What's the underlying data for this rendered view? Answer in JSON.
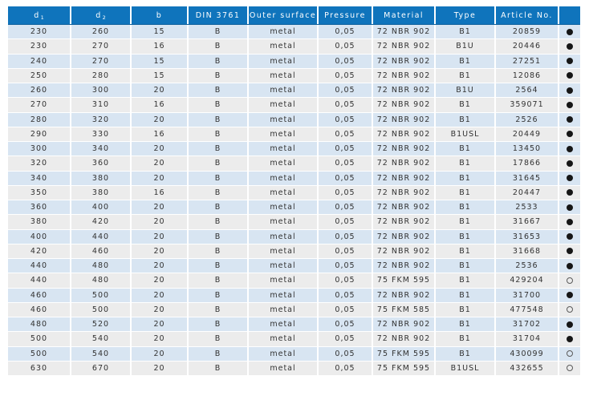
{
  "colors": {
    "header_bg": "#0f74bc",
    "header_text": "#ffffff",
    "row_blue": "#d8e5f2",
    "row_gray": "#ececec",
    "body_text": "#323232",
    "dot": "#161616"
  },
  "table": {
    "columns": [
      {
        "key": "d1",
        "label": "d",
        "sub": "1"
      },
      {
        "key": "d2",
        "label": "d",
        "sub": "2"
      },
      {
        "key": "b",
        "label": "b"
      },
      {
        "key": "din",
        "label": "DIN 3761"
      },
      {
        "key": "outer",
        "label": "Outer surface"
      },
      {
        "key": "pressure",
        "label": "Pressure"
      },
      {
        "key": "material",
        "label": "Material"
      },
      {
        "key": "type",
        "label": "Type"
      },
      {
        "key": "article",
        "label": "Article No."
      },
      {
        "key": "dot",
        "label": ""
      }
    ],
    "rows": [
      {
        "d1": "230",
        "d2": "260",
        "b": "15",
        "din": "B",
        "outer": "metal",
        "pressure": "0,05",
        "material": "72 NBR 902",
        "type": "B1",
        "article": "20859",
        "dot": "filled"
      },
      {
        "d1": "230",
        "d2": "270",
        "b": "16",
        "din": "B",
        "outer": "metal",
        "pressure": "0,05",
        "material": "72 NBR 902",
        "type": "B1U",
        "article": "20446",
        "dot": "filled"
      },
      {
        "d1": "240",
        "d2": "270",
        "b": "15",
        "din": "B",
        "outer": "metal",
        "pressure": "0,05",
        "material": "72 NBR 902",
        "type": "B1",
        "article": "27251",
        "dot": "filled"
      },
      {
        "d1": "250",
        "d2": "280",
        "b": "15",
        "din": "B",
        "outer": "metal",
        "pressure": "0,05",
        "material": "72 NBR 902",
        "type": "B1",
        "article": "12086",
        "dot": "filled"
      },
      {
        "d1": "260",
        "d2": "300",
        "b": "20",
        "din": "B",
        "outer": "metal",
        "pressure": "0,05",
        "material": "72 NBR 902",
        "type": "B1U",
        "article": "2564",
        "dot": "filled"
      },
      {
        "d1": "270",
        "d2": "310",
        "b": "16",
        "din": "B",
        "outer": "metal",
        "pressure": "0,05",
        "material": "72 NBR 902",
        "type": "B1",
        "article": "359071",
        "dot": "filled"
      },
      {
        "d1": "280",
        "d2": "320",
        "b": "20",
        "din": "B",
        "outer": "metal",
        "pressure": "0,05",
        "material": "72 NBR 902",
        "type": "B1",
        "article": "2526",
        "dot": "filled"
      },
      {
        "d1": "290",
        "d2": "330",
        "b": "16",
        "din": "B",
        "outer": "metal",
        "pressure": "0,05",
        "material": "72 NBR 902",
        "type": "B1USL",
        "article": "20449",
        "dot": "filled"
      },
      {
        "d1": "300",
        "d2": "340",
        "b": "20",
        "din": "B",
        "outer": "metal",
        "pressure": "0,05",
        "material": "72 NBR 902",
        "type": "B1",
        "article": "13450",
        "dot": "filled"
      },
      {
        "d1": "320",
        "d2": "360",
        "b": "20",
        "din": "B",
        "outer": "metal",
        "pressure": "0,05",
        "material": "72 NBR 902",
        "type": "B1",
        "article": "17866",
        "dot": "filled"
      },
      {
        "d1": "340",
        "d2": "380",
        "b": "20",
        "din": "B",
        "outer": "metal",
        "pressure": "0,05",
        "material": "72 NBR 902",
        "type": "B1",
        "article": "31645",
        "dot": "filled"
      },
      {
        "d1": "350",
        "d2": "380",
        "b": "16",
        "din": "B",
        "outer": "metal",
        "pressure": "0,05",
        "material": "72 NBR 902",
        "type": "B1",
        "article": "20447",
        "dot": "filled"
      },
      {
        "d1": "360",
        "d2": "400",
        "b": "20",
        "din": "B",
        "outer": "metal",
        "pressure": "0,05",
        "material": "72 NBR 902",
        "type": "B1",
        "article": "2533",
        "dot": "filled"
      },
      {
        "d1": "380",
        "d2": "420",
        "b": "20",
        "din": "B",
        "outer": "metal",
        "pressure": "0,05",
        "material": "72 NBR 902",
        "type": "B1",
        "article": "31667",
        "dot": "filled"
      },
      {
        "d1": "400",
        "d2": "440",
        "b": "20",
        "din": "B",
        "outer": "metal",
        "pressure": "0,05",
        "material": "72 NBR 902",
        "type": "B1",
        "article": "31653",
        "dot": "filled"
      },
      {
        "d1": "420",
        "d2": "460",
        "b": "20",
        "din": "B",
        "outer": "metal",
        "pressure": "0,05",
        "material": "72 NBR 902",
        "type": "B1",
        "article": "31668",
        "dot": "filled"
      },
      {
        "d1": "440",
        "d2": "480",
        "b": "20",
        "din": "B",
        "outer": "metal",
        "pressure": "0,05",
        "material": "72 NBR 902",
        "type": "B1",
        "article": "2536",
        "dot": "filled"
      },
      {
        "d1": "440",
        "d2": "480",
        "b": "20",
        "din": "B",
        "outer": "metal",
        "pressure": "0,05",
        "material": "75 FKM 595",
        "type": "B1",
        "article": "429204",
        "dot": "open"
      },
      {
        "d1": "460",
        "d2": "500",
        "b": "20",
        "din": "B",
        "outer": "metal",
        "pressure": "0,05",
        "material": "72 NBR 902",
        "type": "B1",
        "article": "31700",
        "dot": "filled"
      },
      {
        "d1": "460",
        "d2": "500",
        "b": "20",
        "din": "B",
        "outer": "metal",
        "pressure": "0,05",
        "material": "75 FKM 585",
        "type": "B1",
        "article": "477548",
        "dot": "open"
      },
      {
        "d1": "480",
        "d2": "520",
        "b": "20",
        "din": "B",
        "outer": "metal",
        "pressure": "0,05",
        "material": "72 NBR 902",
        "type": "B1",
        "article": "31702",
        "dot": "filled"
      },
      {
        "d1": "500",
        "d2": "540",
        "b": "20",
        "din": "B",
        "outer": "metal",
        "pressure": "0,05",
        "material": "72 NBR 902",
        "type": "B1",
        "article": "31704",
        "dot": "filled"
      },
      {
        "d1": "500",
        "d2": "540",
        "b": "20",
        "din": "B",
        "outer": "metal",
        "pressure": "0,05",
        "material": "75 FKM 595",
        "type": "B1",
        "article": "430099",
        "dot": "open"
      },
      {
        "d1": "630",
        "d2": "670",
        "b": "20",
        "din": "B",
        "outer": "metal",
        "pressure": "0,05",
        "material": "75 FKM 595",
        "type": "B1USL",
        "article": "432655",
        "dot": "open"
      }
    ]
  }
}
